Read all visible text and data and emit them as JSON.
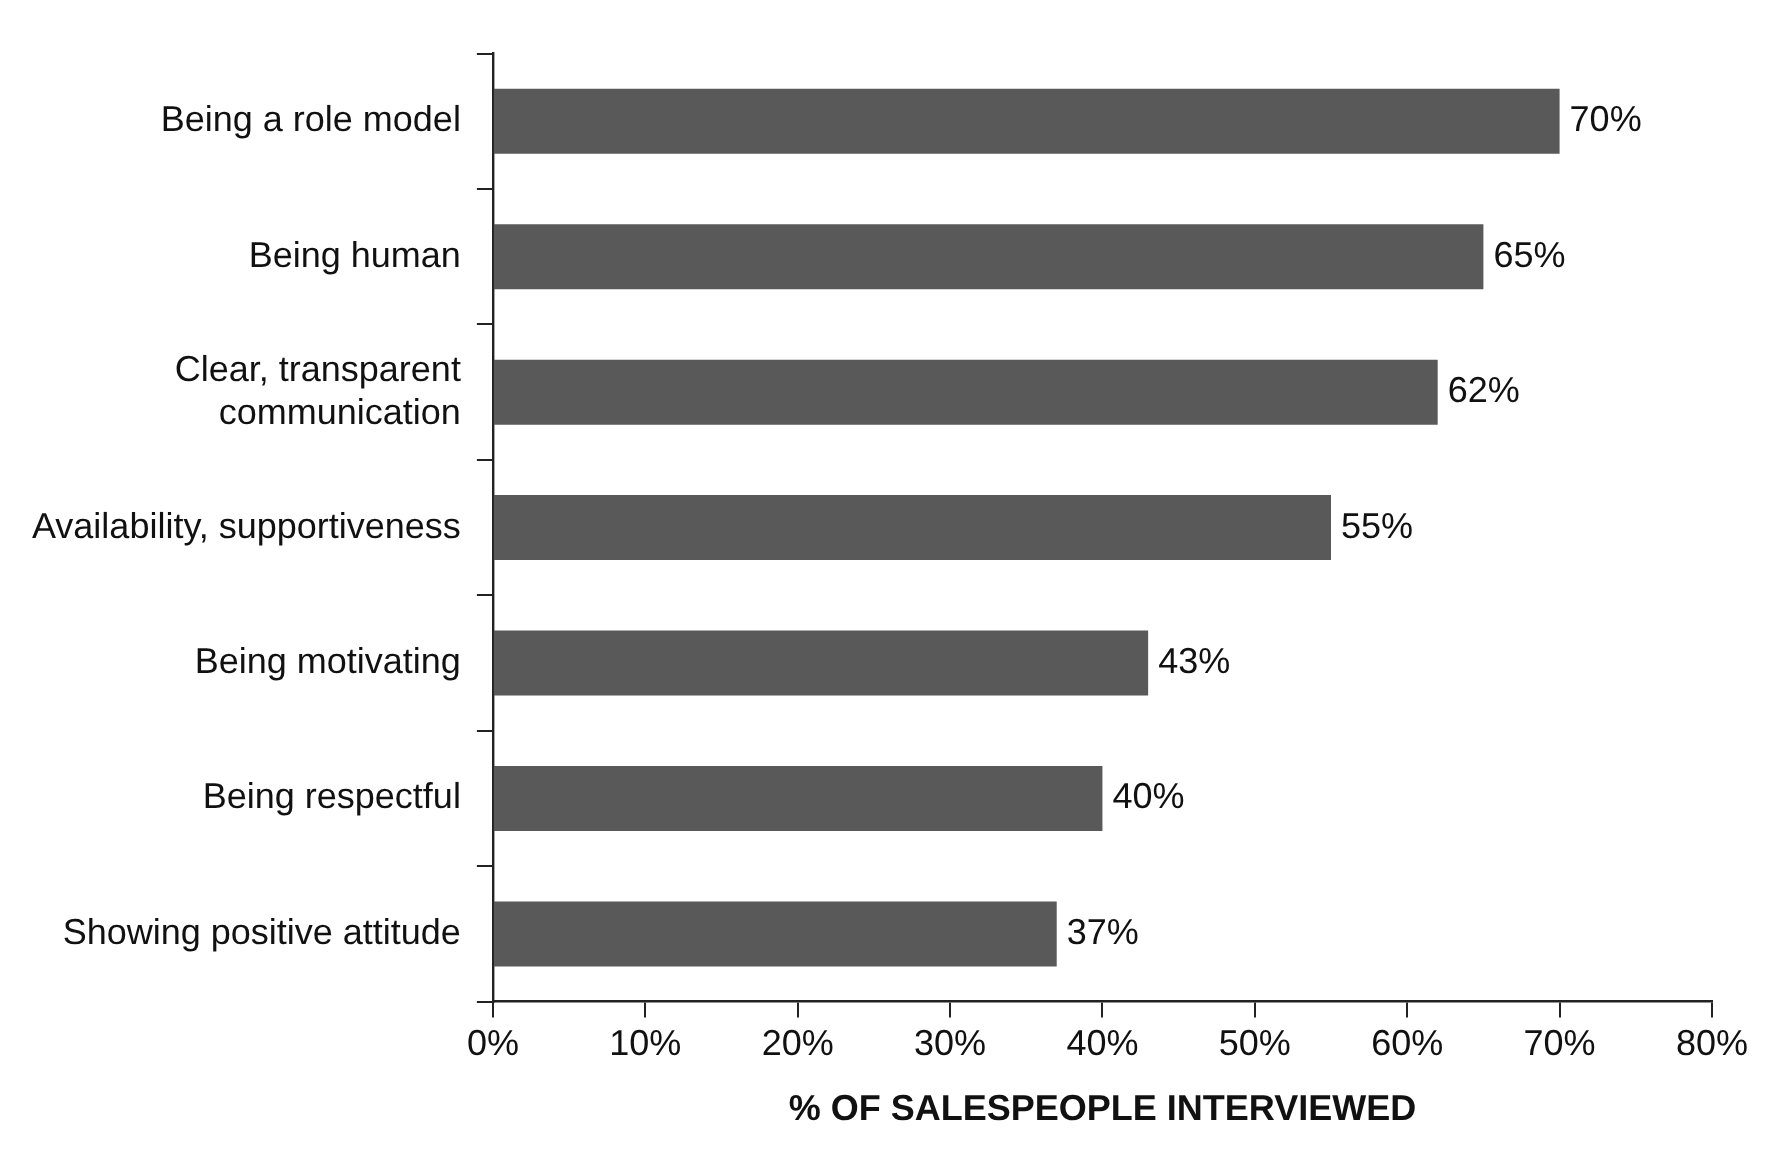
{
  "chart_data": {
    "type": "bar",
    "orientation": "horizontal",
    "xlabel": "% OF SALESPEOPLE INTERVIEWED",
    "categories": [
      "Being a role model",
      "Being human",
      "Clear, transparent communication",
      "Availability, supportiveness",
      "Being motivating",
      "Being respectful",
      "Showing positive attitude"
    ],
    "values": [
      70,
      65,
      62,
      55,
      43,
      40,
      37
    ],
    "value_labels": [
      "70%",
      "65%",
      "62%",
      "55%",
      "43%",
      "40%",
      "37%"
    ],
    "color": "#595959",
    "xlim": [
      0,
      80
    ],
    "xticks": [
      {
        "value": 0,
        "label": "0%"
      },
      {
        "value": 10,
        "label": "10%"
      },
      {
        "value": 20,
        "label": "20%"
      },
      {
        "value": 30,
        "label": "30%"
      },
      {
        "value": 40,
        "label": "40%"
      },
      {
        "value": 50,
        "label": "50%"
      },
      {
        "value": 60,
        "label": "60%"
      },
      {
        "value": 70,
        "label": "70%"
      },
      {
        "value": 80,
        "label": "80%"
      }
    ],
    "grid": false,
    "legend": false
  }
}
